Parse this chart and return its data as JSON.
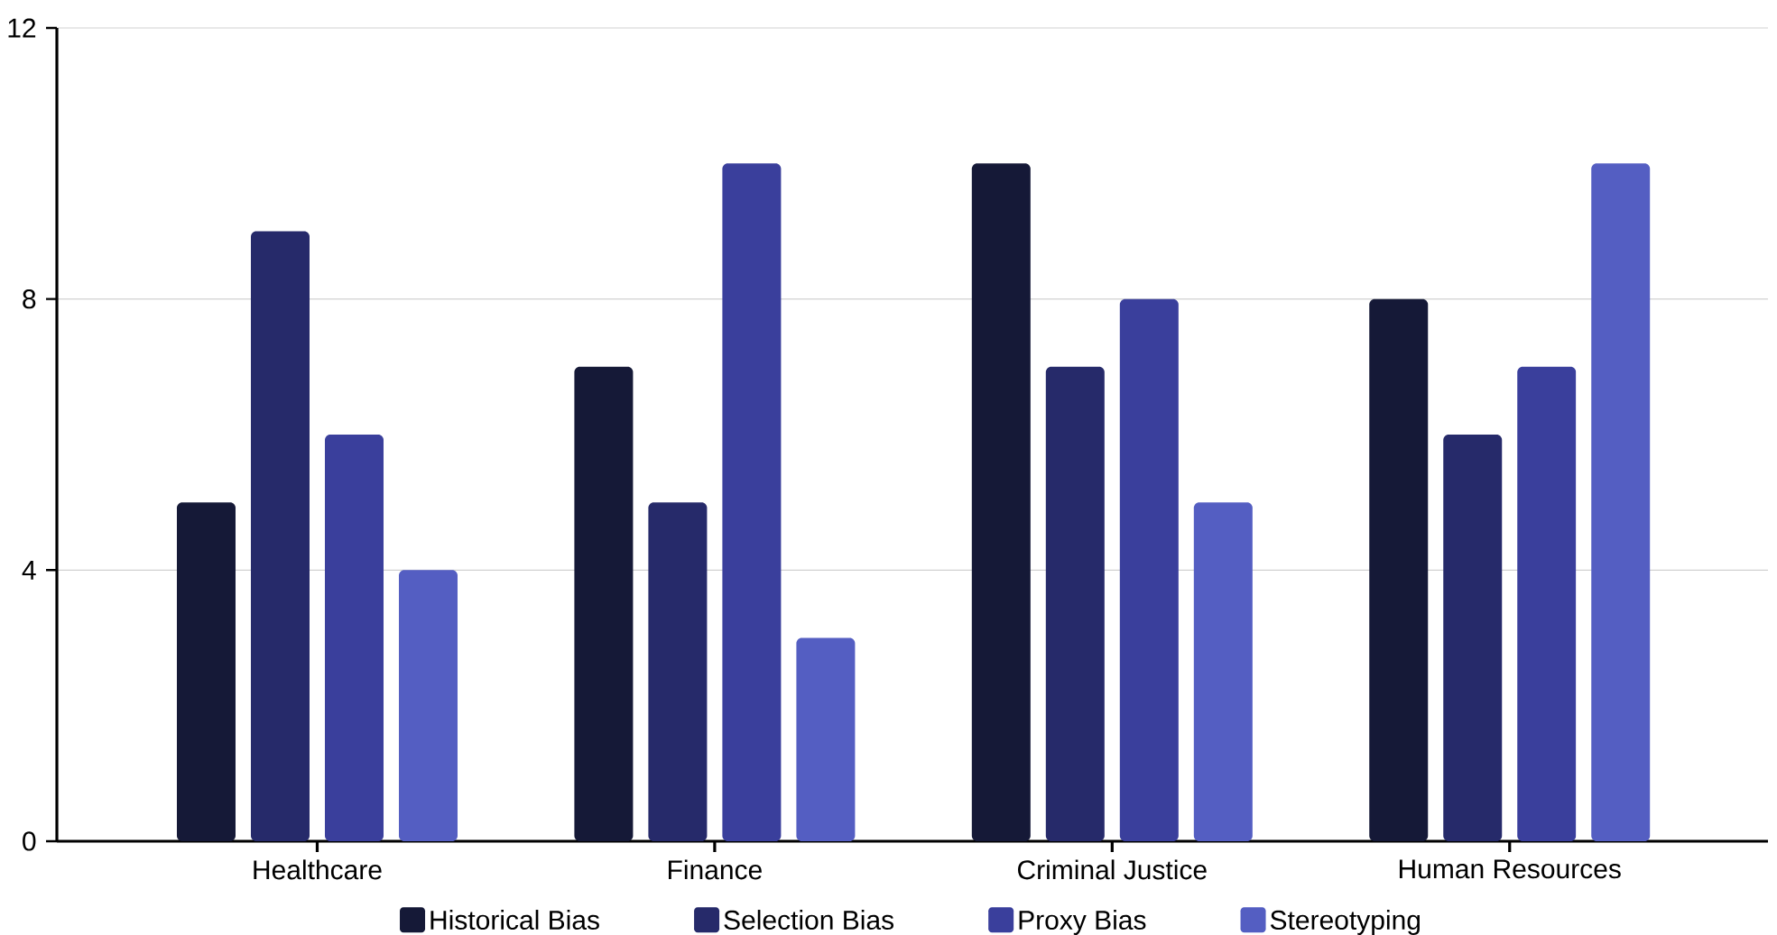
{
  "chart_data": {
    "type": "bar",
    "categories": [
      "Healthcare",
      "Finance",
      "Criminal Justice",
      "Human Resources"
    ],
    "series": [
      {
        "name": "Historical Bias",
        "color": "#151937",
        "values": [
          5,
          7,
          10,
          8
        ]
      },
      {
        "name": "Selection Bias",
        "color": "#262a6a",
        "values": [
          9,
          5,
          7,
          6
        ]
      },
      {
        "name": "Proxy Bias",
        "color": "#3a3f9c",
        "values": [
          6,
          10,
          8,
          7
        ]
      },
      {
        "name": "Stereotyping",
        "color": "#545ec2",
        "values": [
          4,
          3,
          5,
          10
        ]
      }
    ],
    "ylim": [
      0,
      12
    ],
    "yticks": [
      0,
      4,
      8,
      12
    ],
    "grid": "y",
    "legend": "bottom"
  }
}
